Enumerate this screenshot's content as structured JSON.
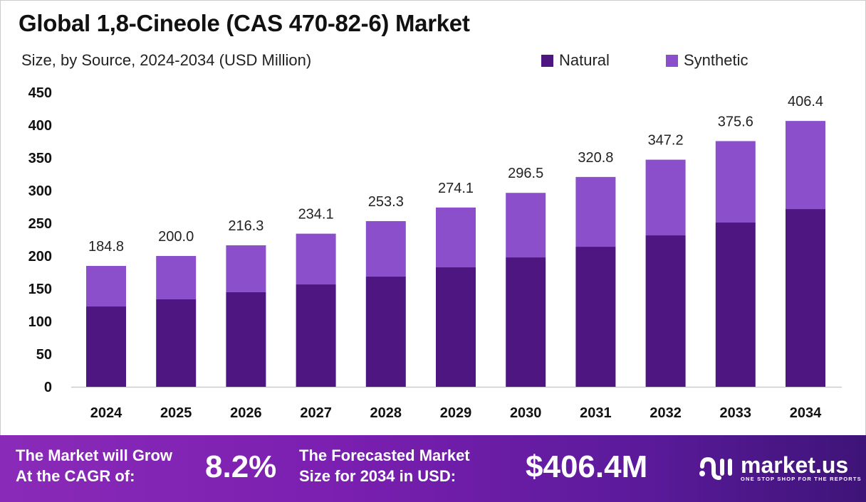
{
  "title": "Global 1,8-Cineole (CAS 470-82-6) Market",
  "subtitle": "Size, by Source, 2024-2034 (USD Million)",
  "colors": {
    "natural": "#4e1681",
    "synthetic": "#8b4fcc",
    "footer_start": "#8a2ab8",
    "footer_end": "#3e1478"
  },
  "chart_data": {
    "type": "bar",
    "stacked": true,
    "categories": [
      "2024",
      "2025",
      "2026",
      "2027",
      "2028",
      "2029",
      "2030",
      "2031",
      "2032",
      "2033",
      "2034"
    ],
    "series": [
      {
        "name": "Natural",
        "values": [
          122.8,
          133.7,
          144.6,
          156.5,
          168.5,
          182.6,
          197.8,
          214.1,
          231.5,
          251.1,
          271.7
        ]
      },
      {
        "name": "Synthetic",
        "values": [
          62.0,
          66.3,
          71.7,
          77.6,
          84.8,
          91.5,
          98.7,
          106.7,
          115.7,
          124.5,
          134.7
        ]
      }
    ],
    "totals": [
      "184.8",
      "200.0",
      "216.3",
      "234.1",
      "253.3",
      "274.1",
      "296.5",
      "320.8",
      "347.2",
      "375.6",
      "406.4"
    ],
    "ylim": [
      0,
      450
    ],
    "yticks": [
      "0",
      "50",
      "100",
      "150",
      "200",
      "250",
      "300",
      "350",
      "400",
      "450"
    ],
    "grid": false,
    "legend": "top-right"
  },
  "footer": {
    "cagr_label_1": "The Market will Grow",
    "cagr_label_2": "At the CAGR of:",
    "cagr_value": "8.2%",
    "forecast_label_1": "The Forecasted Market",
    "forecast_label_2": "Size for 2034 in USD:",
    "forecast_value": "$406.4M",
    "logo_text": "market.us",
    "logo_tagline": "ONE STOP SHOP FOR THE REPORTS"
  }
}
